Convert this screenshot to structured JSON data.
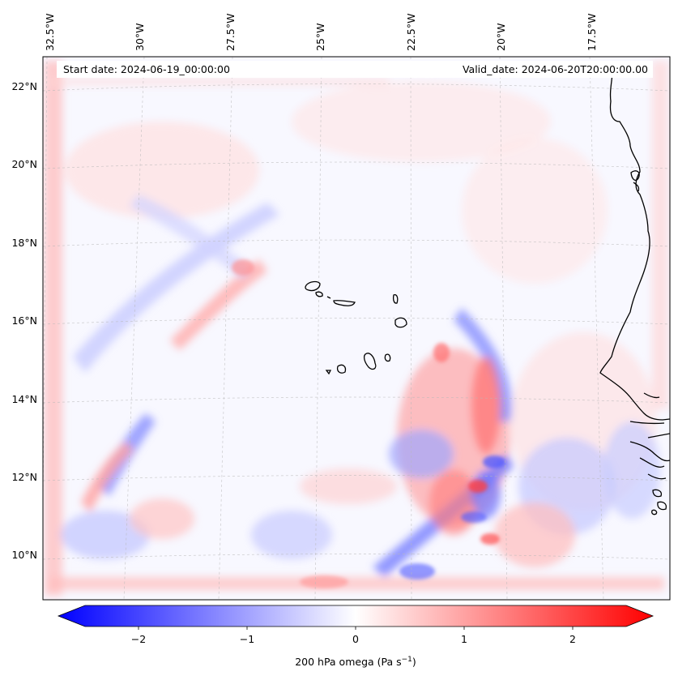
{
  "map": {
    "start_date": "Start date: 2024-06-19_00:00:00",
    "valid_date": "Valid_date: 2024-06-20T20:00:00.00",
    "lon_labels": [
      "32.5°W",
      "30°W",
      "27.5°W",
      "25°W",
      "22.5°W",
      "20°W",
      "17.5°W"
    ],
    "lat_labels": [
      "22°N",
      "20°N",
      "18°N",
      "16°N",
      "14°N",
      "12°N",
      "10°N"
    ],
    "field_colors": {
      "background": "#f8f8ff",
      "positive": "#ff0000",
      "negative": "#0000ff"
    }
  },
  "colorbar": {
    "ticks": [
      "−2",
      "−1",
      "0",
      "1",
      "2"
    ],
    "label_main": "200 hPa omega (Pa s",
    "label_exp": "−1",
    "label_end": ")",
    "range": [
      -2.7,
      2.7
    ]
  }
}
